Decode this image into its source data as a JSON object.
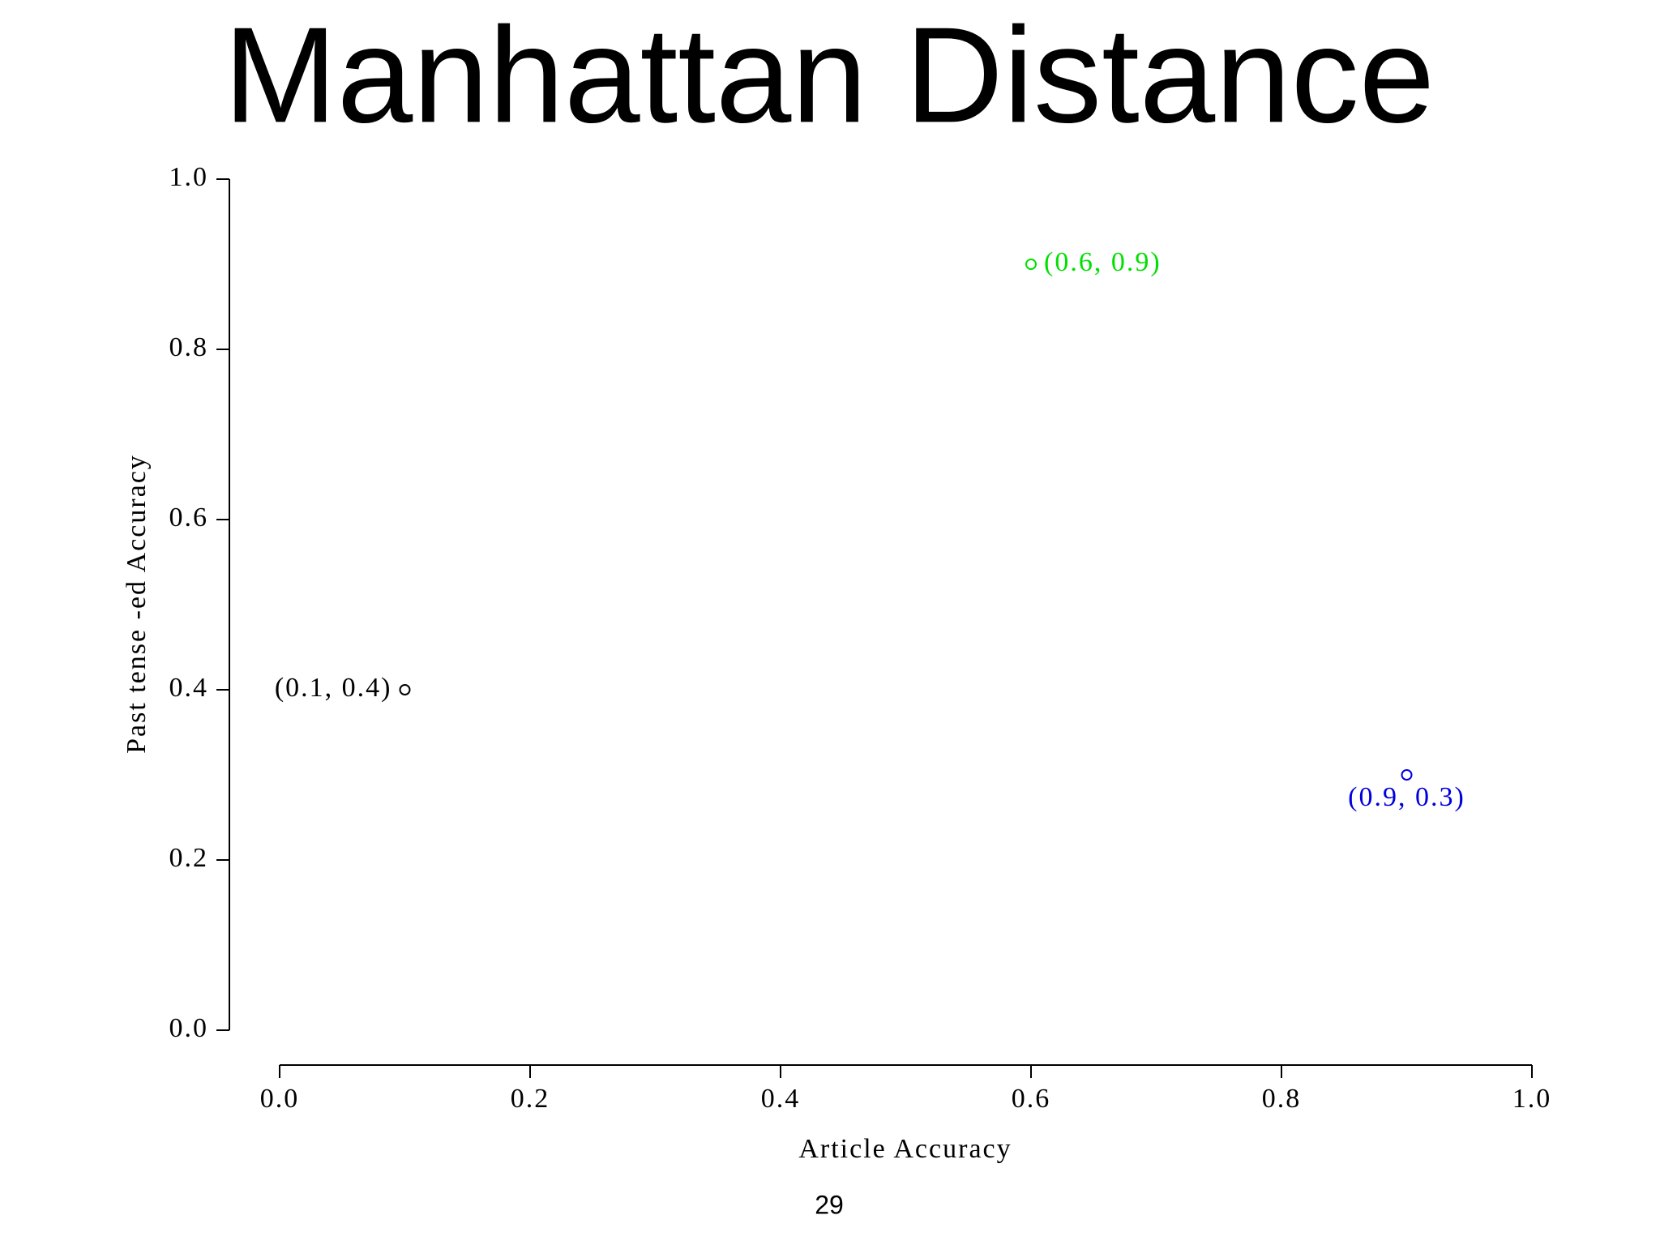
{
  "chart_data": {
    "type": "scatter",
    "title": "Manhattan Distance",
    "xlabel": "Article Accuracy",
    "ylabel": "Past tense -ed Accuracy",
    "x": [
      0.1,
      0.6,
      0.9
    ],
    "values": [
      0.4,
      0.9,
      0.3
    ],
    "colors": [
      "#000000",
      "#00e000",
      "#0000dd"
    ],
    "point_labels": [
      "(0.1, 0.4)",
      "(0.6, 0.9)",
      "(0.9, 0.3)"
    ],
    "label_positions": [
      "left",
      "right",
      "below"
    ],
    "xlim": [
      0,
      1
    ],
    "ylim": [
      0,
      1
    ],
    "xticks": [
      {
        "value": 0,
        "label": "0.0"
      },
      0.2,
      0.4,
      0.6,
      0.8,
      {
        "value": 1,
        "label": "1.0"
      }
    ],
    "yticks": [
      {
        "value": 0,
        "label": "0.0"
      },
      0.2,
      0.4,
      0.6,
      0.8,
      {
        "value": 1,
        "label": "1.0"
      }
    ],
    "grid": false
  },
  "page_number": "29"
}
